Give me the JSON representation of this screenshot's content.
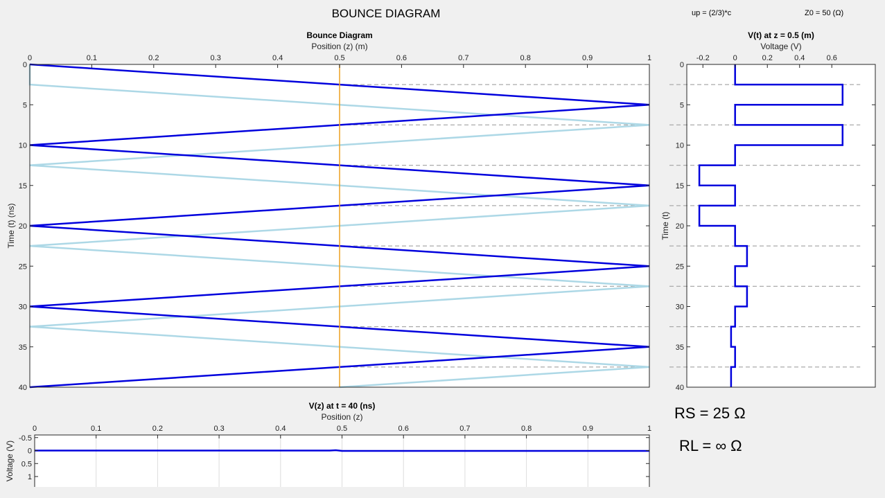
{
  "header": {
    "title": "BOUNCE DIAGRAM",
    "up": "up = (2/3)*c",
    "z0": "Z0 = 50 (Ω)"
  },
  "params": {
    "rs": "RS = 25 Ω",
    "rl": "RL = ∞ Ω"
  },
  "colors": {
    "forward": "#0000dd",
    "reflected": "#add8e6",
    "probe": "#eda020",
    "dashed": "#aaaaaa"
  },
  "chart_data": [
    {
      "id": "bounce",
      "type": "line",
      "title": "Bounce Diagram",
      "xlabel": "Position (z) (m)",
      "ylabel": "Time (t) (ns)",
      "xlim": [
        0,
        1
      ],
      "ylim": [
        0,
        40
      ],
      "y_reversed": true,
      "x_ticks": [
        "0",
        "0.1",
        "0.2",
        "0.3",
        "0.4",
        "0.5",
        "0.6",
        "0.7",
        "0.8",
        "0.9",
        "1"
      ],
      "y_ticks": [
        "0",
        "5",
        "10",
        "15",
        "20",
        "25",
        "30",
        "35",
        "40"
      ],
      "probe_z": 0.5,
      "series": [
        {
          "x": [
            0,
            1,
            0,
            1,
            0,
            1,
            0,
            1,
            0
          ],
          "y": [
            0,
            5,
            10,
            15,
            20,
            25,
            30,
            35,
            40
          ]
        },
        {
          "x": [
            0,
            0,
            1,
            0,
            1,
            0,
            1,
            0,
            1,
            0.5
          ],
          "y": [
            0,
            2.5,
            7.5,
            12.5,
            17.5,
            22.5,
            27.5,
            32.5,
            37.5,
            40
          ]
        }
      ],
      "dashed_y": [
        2.5,
        7.5,
        12.5,
        17.5,
        22.5,
        27.5,
        32.5,
        37.5
      ]
    },
    {
      "id": "vt",
      "type": "line",
      "title": "V(t) at z = 0.5 (m)",
      "xlabel": "Voltage (V)",
      "ylabel": "Time (t)",
      "xlim": [
        -0.3,
        0.87
      ],
      "ylim": [
        0,
        40
      ],
      "y_reversed": true,
      "x_tick_values": [
        -0.2,
        0,
        0.2,
        0.4,
        0.6
      ],
      "x_ticks": [
        "-0.2",
        "0",
        "0.2",
        "0.4",
        "0.6"
      ],
      "y_ticks": [
        "0",
        "5",
        "10",
        "15",
        "20",
        "25",
        "30",
        "35",
        "40"
      ],
      "series": [
        {
          "v": [
            0,
            0,
            0.667,
            0.667,
            0,
            0,
            0.667,
            0.667,
            0,
            0,
            -0.222,
            -0.222,
            0,
            0,
            -0.222,
            -0.222,
            0,
            0,
            0.074,
            0.074,
            0,
            0,
            0.074,
            0.074,
            0,
            0,
            -0.025,
            -0.025,
            0,
            0,
            -0.025,
            -0.025
          ],
          "t": [
            0,
            2.5,
            2.5,
            5,
            5,
            7.5,
            7.5,
            10,
            10,
            12.5,
            12.5,
            15,
            15,
            17.5,
            17.5,
            20,
            20,
            22.5,
            22.5,
            25,
            25,
            27.5,
            27.5,
            30,
            30,
            32.5,
            32.5,
            35,
            35,
            37.5,
            37.5,
            40
          ]
        }
      ],
      "dashed_y": [
        2.5,
        7.5,
        12.5,
        17.5,
        22.5,
        27.5,
        32.5,
        37.5
      ]
    },
    {
      "id": "vz",
      "type": "line",
      "title": "V(z) at t = 40 (ns)",
      "xlabel": "Position (z)",
      "ylabel": "Voltage (V)",
      "xlim": [
        0,
        1
      ],
      "ylim": [
        -0.6,
        1.4
      ],
      "y_reversed": true,
      "x_ticks": [
        "0",
        "0.1",
        "0.2",
        "0.3",
        "0.4",
        "0.5",
        "0.6",
        "0.7",
        "0.8",
        "0.9",
        "1"
      ],
      "y_tick_values": [
        -0.5,
        0,
        0.5,
        1
      ],
      "y_ticks": [
        "-0.5",
        "0",
        "0.5",
        "1"
      ],
      "grid": true,
      "series": [
        {
          "x": [
            0,
            0.48,
            0.49,
            0.5,
            1
          ],
          "y": [
            0,
            0,
            -0.012,
            0.012,
            0.012
          ]
        }
      ]
    }
  ]
}
